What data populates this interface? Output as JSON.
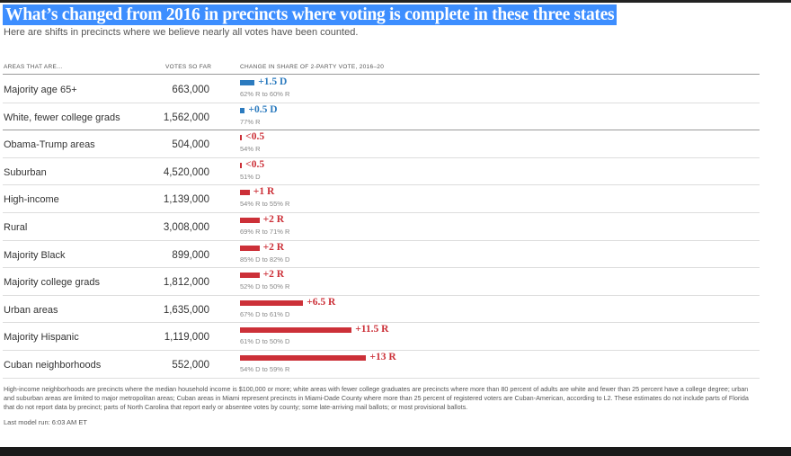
{
  "title": "What’s changed from 2016 in precincts where voting is complete in these three states",
  "subtitle": "Here are shifts in precincts where we believe nearly all votes have been counted.",
  "headers": {
    "areas": "Areas that are...",
    "votes": "Votes so far",
    "change": "Change in share of 2-party vote, 2016–20"
  },
  "colors": {
    "dem": "#2c7bbf",
    "rep": "#cc3038"
  },
  "chart_data": {
    "type": "bar",
    "title": "What’s changed from 2016 in precincts where voting is complete in these three states",
    "xlabel": "Change in share of 2-party vote, 2016–20",
    "categories": [
      "Majority age 65+",
      "White, fewer college grads",
      "Obama-Trump areas",
      "Suburban",
      "High-income",
      "Rural",
      "Majority Black",
      "Majority college grads",
      "Urban areas",
      "Majority Hispanic",
      "Cuban neighborhoods"
    ],
    "rows": [
      {
        "area": "Majority age 65+",
        "votes": "663,000",
        "shift": 1.5,
        "party": "D",
        "label": "+1.5 D",
        "detail": "62% R to 60% R"
      },
      {
        "area": "White, fewer college grads",
        "votes": "1,562,000",
        "shift": 0.5,
        "party": "D",
        "label": "+0.5 D",
        "detail": "77% R"
      },
      {
        "area": "Obama-Trump areas",
        "votes": "504,000",
        "shift": 0.2,
        "party": "R",
        "label": "<0.5",
        "detail": "54% R"
      },
      {
        "area": "Suburban",
        "votes": "4,520,000",
        "shift": 0.2,
        "party": "R",
        "label": "<0.5",
        "detail": "51% D"
      },
      {
        "area": "High-income",
        "votes": "1,139,000",
        "shift": 1,
        "party": "R",
        "label": "+1 R",
        "detail": "54% R to 55% R"
      },
      {
        "area": "Rural",
        "votes": "3,008,000",
        "shift": 2,
        "party": "R",
        "label": "+2 R",
        "detail": "69% R to 71% R"
      },
      {
        "area": "Majority Black",
        "votes": "899,000",
        "shift": 2,
        "party": "R",
        "label": "+2 R",
        "detail": "85% D to 82% D"
      },
      {
        "area": "Majority college grads",
        "votes": "1,812,000",
        "shift": 2,
        "party": "R",
        "label": "+2 R",
        "detail": "52% D to 50% R"
      },
      {
        "area": "Urban areas",
        "votes": "1,635,000",
        "shift": 6.5,
        "party": "R",
        "label": "+6.5 R",
        "detail": "67% D to 61% D"
      },
      {
        "area": "Majority Hispanic",
        "votes": "1,119,000",
        "shift": 11.5,
        "party": "R",
        "label": "+11.5 R",
        "detail": "61% D to 50% D"
      },
      {
        "area": "Cuban neighborhoods",
        "votes": "552,000",
        "shift": 13,
        "party": "R",
        "label": "+13 R",
        "detail": "54% D to 59% R"
      }
    ]
  },
  "note": "High-income neighborhoods are precincts where the median household income is $100,000 or more; white areas with fewer college graduates are precincts where more than 80 percent of adults are white and fewer than 25 percent have a college degree; urban and suburban areas are limited to major metropolitan areas; Cuban areas in Miami represent precincts in Miami-Dade County where more than 25 percent of registered voters are Cuban-American, according to L2. These estimates do not include parts of Florida that do not report data by precinct; parts of North Carolina that report early or absentee votes by county; some late-arriving mail ballots; or most provisional ballots.",
  "last_run": "Last model run: 6:03 AM ET"
}
